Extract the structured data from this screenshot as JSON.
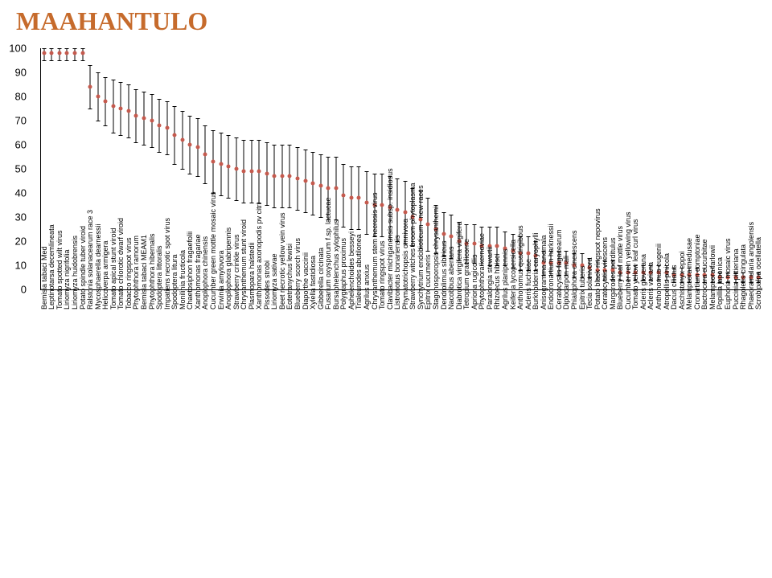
{
  "title": "MAAHANTULO",
  "title_color": "#c66b2c",
  "title_fontsize": 32,
  "background": "#ffffff",
  "point_color": "#c55a4e",
  "axis_color": "#000000",
  "chart": {
    "ylim": [
      0,
      100
    ],
    "ytick_step": 10,
    "yticks": [
      0,
      10,
      20,
      30,
      40,
      50,
      60,
      70,
      80,
      90,
      100
    ]
  },
  "items": [
    {
      "label": "Bemisia tabaci Med",
      "v": 98,
      "lo": 95,
      "hi": 100
    },
    {
      "label": "Leptinotarsa decemlineata",
      "v": 98,
      "lo": 95,
      "hi": 100
    },
    {
      "label": "Tomato spotted wilt virus",
      "v": 98,
      "lo": 95,
      "hi": 100
    },
    {
      "label": "Liriomyza nigrifolia",
      "v": 98,
      "lo": 95,
      "hi": 100
    },
    {
      "label": "Liriomyza huidobrensis",
      "v": 98,
      "lo": 95,
      "hi": 100
    },
    {
      "label": "Potato spindle tuber viroid",
      "v": 98,
      "lo": 95,
      "hi": 100
    },
    {
      "label": "Ralstonia solanacearum race 3",
      "v": 84,
      "lo": 75,
      "hi": 93
    },
    {
      "label": "Mycosphaerella dearnessii",
      "v": 80,
      "lo": 70,
      "hi": 90
    },
    {
      "label": "Helicoverpa armigera",
      "v": 78,
      "lo": 68,
      "hi": 88
    },
    {
      "label": "Tomato apical stunt viroid",
      "v": 76,
      "lo": 65,
      "hi": 87
    },
    {
      "label": "Tomato chlorotic dwarf viroid",
      "v": 75,
      "lo": 64,
      "hi": 86
    },
    {
      "label": "Tobacco ringspot virus",
      "v": 74,
      "lo": 63,
      "hi": 85
    },
    {
      "label": "Phytophthora ramorum",
      "v": 72,
      "lo": 61,
      "hi": 83
    },
    {
      "label": "Bemisia tabaci MEAM1",
      "v": 71,
      "lo": 60,
      "hi": 82
    },
    {
      "label": "Phytophthora hibernalis",
      "v": 70,
      "lo": 59,
      "hi": 81
    },
    {
      "label": "Spodoptera littoralis",
      "v": 68,
      "lo": 57,
      "hi": 79
    },
    {
      "label": "Impatiens necrotic spot virus",
      "v": 67,
      "lo": 56,
      "hi": 78
    },
    {
      "label": "Spodoptera litura",
      "v": 64,
      "lo": 52,
      "hi": 76
    },
    {
      "label": "Monilinia fructicola",
      "v": 62,
      "lo": 50,
      "hi": 74
    },
    {
      "label": "Chaetosiphon fragaefolii",
      "v": 60,
      "lo": 48,
      "hi": 72
    },
    {
      "label": "Xanthomonas fragariae",
      "v": 59,
      "lo": 47,
      "hi": 71
    },
    {
      "label": "Anoplophora chinensis",
      "v": 56,
      "lo": 44,
      "hi": 68
    },
    {
      "label": "Cucumber green mottle mosaic virus",
      "v": 53,
      "lo": 40,
      "hi": 66
    },
    {
      "label": "Erwinia amylovora",
      "v": 52,
      "lo": 39,
      "hi": 65
    },
    {
      "label": "Anoplophora glabripennis",
      "v": 51,
      "lo": 38,
      "hi": 64
    },
    {
      "label": "Strawberry crinkle virus",
      "v": 50,
      "lo": 37,
      "hi": 63
    },
    {
      "label": "Chrysanthemum stunt viroid",
      "v": 49,
      "lo": 36,
      "hi": 62
    },
    {
      "label": "Plasmopara halstedii",
      "v": 49,
      "lo": 36,
      "hi": 62
    },
    {
      "label": "Xanthomonas axonopodis pv citri",
      "v": 49,
      "lo": 36,
      "hi": 62
    },
    {
      "label": "Pissodes strobi",
      "v": 48,
      "lo": 35,
      "hi": 61
    },
    {
      "label": "Liriomyza sativae",
      "v": 47,
      "lo": 34,
      "hi": 60
    },
    {
      "label": "Beet necrotic yellow vein virus",
      "v": 47,
      "lo": 34,
      "hi": 60
    },
    {
      "label": "Eotetranychus lewisi",
      "v": 47,
      "lo": 34,
      "hi": 60
    },
    {
      "label": "Blueberry scorch virus",
      "v": 46,
      "lo": 33,
      "hi": 59
    },
    {
      "label": "Diaporthe vaccinii",
      "v": 45,
      "lo": 32,
      "hi": 58
    },
    {
      "label": "Xylella fastidiosa",
      "v": 44,
      "lo": 31,
      "hi": 57
    },
    {
      "label": "Gibberella circinata",
      "v": 43,
      "lo": 30,
      "hi": 56
    },
    {
      "label": "Fusarium oxysporum f.sp. lactucae",
      "v": 42,
      "lo": 29,
      "hi": 55
    },
    {
      "label": "Bursaphelenchus xylophilus",
      "v": 42,
      "lo": 29,
      "hi": 55
    },
    {
      "label": "Polygraphus proximus",
      "v": 39,
      "lo": 26,
      "hi": 52
    },
    {
      "label": "Aphelenchoides besseyi",
      "v": 38,
      "lo": 25,
      "hi": 51
    },
    {
      "label": "Trialeurodes abutilonea",
      "v": 38,
      "lo": 25,
      "hi": 51
    },
    {
      "label": "Agrilus anxius",
      "v": 36,
      "lo": 23,
      "hi": 49
    },
    {
      "label": "Chrysanthemum stem necrosis virus",
      "v": 35,
      "lo": 22,
      "hi": 48
    },
    {
      "label": "Tomato ringspot virus",
      "v": 35,
      "lo": 22,
      "hi": 48
    },
    {
      "label": "Clavibacter michiganensis subsp. insidiosus",
      "v": 34,
      "lo": 21,
      "hi": 47
    },
    {
      "label": "Listronotus bonariensis",
      "v": 33,
      "lo": 20,
      "hi": 46
    },
    {
      "label": "Phymatotrichopsis omnivora",
      "v": 32,
      "lo": 19,
      "hi": 45
    },
    {
      "label": "Strawberry witches broom phytoplasma",
      "v": 30,
      "lo": 18,
      "hi": 42
    },
    {
      "label": "Synchytrium endobioticum - new races",
      "v": 29,
      "lo": 17,
      "hi": 41
    },
    {
      "label": "Epitrix cucumeris",
      "v": 27,
      "lo": 16,
      "hi": 38
    },
    {
      "label": "Stagonosporopsis chrysanthemi",
      "v": 25,
      "lo": 15,
      "hi": 35
    },
    {
      "label": "Dendrolimus sibiricus",
      "v": 23,
      "lo": 14,
      "hi": 32
    },
    {
      "label": "Nacobbus aberrans",
      "v": 22,
      "lo": 13,
      "hi": 31
    },
    {
      "label": "Diabrotica virgifera virgifera",
      "v": 20,
      "lo": 12,
      "hi": 28
    },
    {
      "label": "Tetropium gracilicorne",
      "v": 19,
      "lo": 11,
      "hi": 27
    },
    {
      "label": "Apriona rugicollis",
      "v": 19,
      "lo": 11,
      "hi": 27
    },
    {
      "label": "Phytophthora kernoviae",
      "v": 18,
      "lo": 10,
      "hi": 26
    },
    {
      "label": "Paralongia stewartii",
      "v": 18,
      "lo": 10,
      "hi": 26
    },
    {
      "label": "Rhizoecus hibisci",
      "v": 18,
      "lo": 10,
      "hi": 26
    },
    {
      "label": "Agrilus planipennis",
      "v": 17,
      "lo": 10,
      "hi": 24
    },
    {
      "label": "Keiferia lycopersicella",
      "v": 16,
      "lo": 9,
      "hi": 23
    },
    {
      "label": "Anthonomus quadrigibbus",
      "v": 15,
      "lo": 8,
      "hi": 22
    },
    {
      "label": "Acleris fuchsiae",
      "v": 15,
      "lo": 8,
      "hi": 22
    },
    {
      "label": "Burkholderia caryophylli",
      "v": 14,
      "lo": 8,
      "hi": 20
    },
    {
      "label": "Anisogramma anomala",
      "v": 11,
      "lo": 6,
      "hi": 16
    },
    {
      "label": "Endocronartium harknessii",
      "v": 11,
      "lo": 6,
      "hi": 16
    },
    {
      "label": "Ceratocystis fagacearum",
      "v": 11,
      "lo": 6,
      "hi": 16
    },
    {
      "label": "Diplocarpon mali",
      "v": 11,
      "lo": 6,
      "hi": 16
    },
    {
      "label": "Phialophora cinerescens",
      "v": 10,
      "lo": 5,
      "hi": 15
    },
    {
      "label": "Epitrix tuberis",
      "v": 10,
      "lo": 5,
      "hi": 15
    },
    {
      "label": "Tecia solanivora",
      "v": 9,
      "lo": 5,
      "hi": 13
    },
    {
      "label": "Potato black ringspot nepovirus",
      "v": 8,
      "lo": 4,
      "hi": 12
    },
    {
      "label": "Ceratocystis virescens",
      "v": 8,
      "lo": 4,
      "hi": 12
    },
    {
      "label": "Margarodes perditulus",
      "v": 8,
      "lo": 4,
      "hi": 12
    },
    {
      "label": "Blueberry leaf mottle virus",
      "v": 7,
      "lo": 4,
      "hi": 10
    },
    {
      "label": "Cucumber vein yellowing virus",
      "v": 7,
      "lo": 4,
      "hi": 10
    },
    {
      "label": "Tomato yellow leaf curl virus",
      "v": 7,
      "lo": 4,
      "hi": 10
    },
    {
      "label": "Acleris gloverana",
      "v": 7,
      "lo": 4,
      "hi": 10
    },
    {
      "label": "Acleris variana",
      "v": 7,
      "lo": 4,
      "hi": 10
    },
    {
      "label": "Anthonomus eugenii",
      "v": 7,
      "lo": 4,
      "hi": 10
    },
    {
      "label": "Atropellis pinicola",
      "v": 7,
      "lo": 4,
      "hi": 10
    },
    {
      "label": "Dacus ciliatus",
      "v": 6,
      "lo": 3,
      "hi": 9
    },
    {
      "label": "Aschistonyx eppoi",
      "v": 6,
      "lo": 3,
      "hi": 9
    },
    {
      "label": "Melampsora medusae",
      "v": 6,
      "lo": 3,
      "hi": 9
    },
    {
      "label": "Cronartium comptoniae",
      "v": 6,
      "lo": 3,
      "hi": 9
    },
    {
      "label": "Bactrocera cucurbitae",
      "v": 6,
      "lo": 3,
      "hi": 9
    },
    {
      "label": "Melampsora farlowii",
      "v": 6,
      "lo": 3,
      "hi": 9
    },
    {
      "label": "Popillia japonica",
      "v": 5,
      "lo": 3,
      "hi": 7
    },
    {
      "label": "Euphoria mosaic virus",
      "v": 5,
      "lo": 3,
      "hi": 7
    },
    {
      "label": "Puccinia pittieriana",
      "v": 5,
      "lo": 3,
      "hi": 7
    },
    {
      "label": "Rhagoletis cingulata",
      "v": 5,
      "lo": 3,
      "hi": 7
    },
    {
      "label": "Phaeoramularia angolensis",
      "v": 5,
      "lo": 3,
      "hi": 7
    },
    {
      "label": "Scrobipalpa ocellatella",
      "v": 5,
      "lo": 3,
      "hi": 7
    }
  ]
}
